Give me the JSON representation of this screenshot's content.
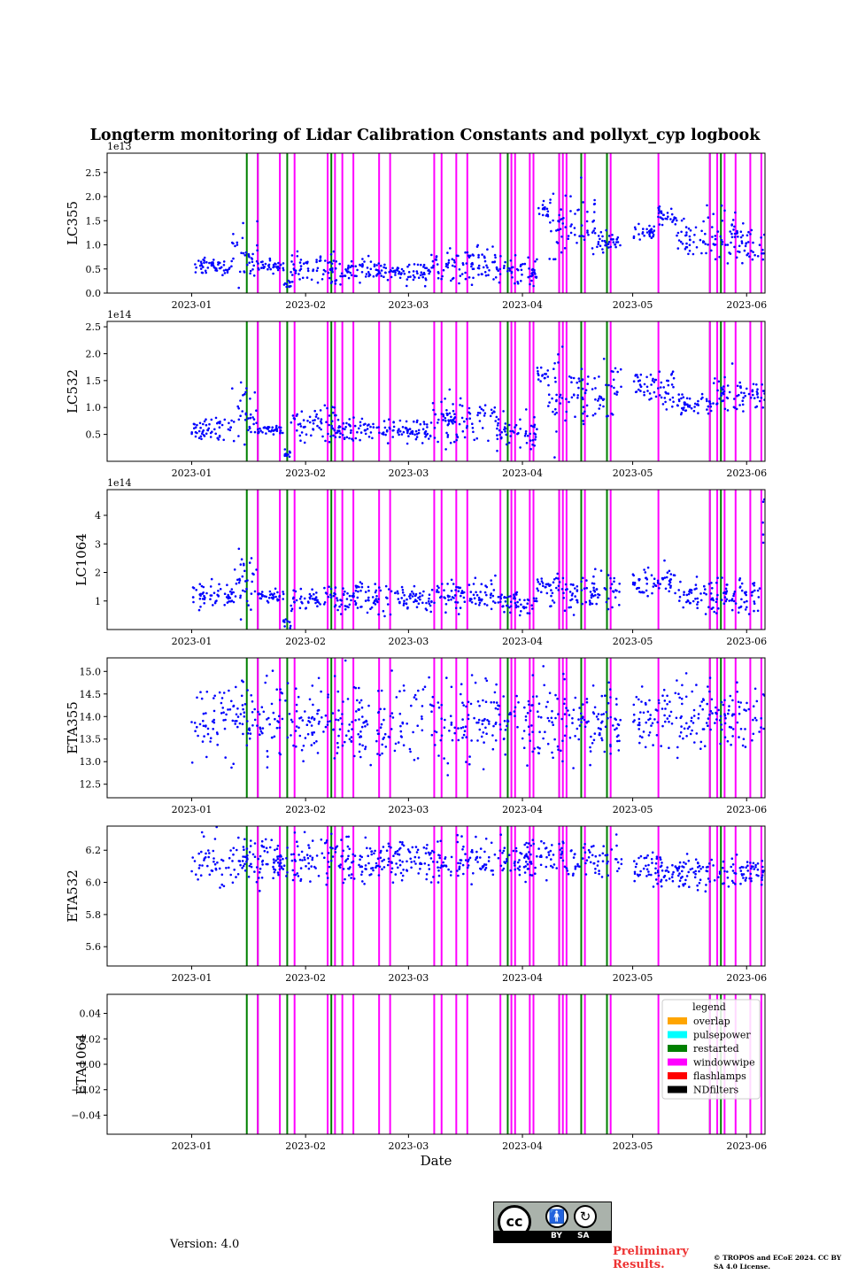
{
  "figure": {
    "title": "Longterm monitoring of Lidar Calibration Constants and pollyxt_cyp logbook",
    "version": "Version: 4.0",
    "preliminary": "Preliminary Results.",
    "copyright": "© TROPOS and ECoE 2024. CC BY SA 4.0 License.",
    "license_badge": {
      "by": "BY",
      "sa": "SA",
      "logo": "cc"
    }
  },
  "colors": {
    "points": "#0000ff",
    "overlap": "#ffa500",
    "pulsepower": "#00ffff",
    "restarted": "#008000",
    "windowwipe": "#ff00ff",
    "flashlamps": "#ff0000",
    "NDfilters": "#000000"
  },
  "chart_data": [
    {
      "type": "scatter",
      "ylabel": "LC355",
      "multiplier": "1e13",
      "xlabel": "",
      "xlim": [
        "2022-12-09",
        "2023-06-06"
      ],
      "ylim": [
        0,
        2.9
      ],
      "yticks": [
        "0.0",
        "0.5",
        "1.0",
        "1.5",
        "2.0",
        "2.5"
      ],
      "xticks": [
        "2023-01",
        "2023-02",
        "2023-03",
        "2023-04",
        "2023-05",
        "2023-06"
      ],
      "segments": [
        [
          "2023-01-01",
          "2023-01-12",
          0.55,
          0.08
        ],
        [
          "2023-01-12",
          "2023-01-19",
          0.8,
          0.3
        ],
        [
          "2023-01-19",
          "2023-01-26",
          0.55,
          0.07
        ],
        [
          "2023-01-26",
          "2023-01-28",
          0.18,
          0.05
        ],
        [
          "2023-01-28",
          "2023-02-09",
          0.55,
          0.15
        ],
        [
          "2023-02-09",
          "2023-03-07",
          0.45,
          0.12
        ],
        [
          "2023-03-07",
          "2023-03-25",
          0.6,
          0.2
        ],
        [
          "2023-03-25",
          "2023-04-05",
          0.45,
          0.15
        ],
        [
          "2023-04-05",
          "2023-04-08",
          1.7,
          0.1
        ],
        [
          "2023-04-08",
          "2023-04-14",
          1.2,
          0.35
        ],
        [
          "2023-04-14",
          "2023-04-21",
          1.4,
          0.4
        ],
        [
          "2023-04-21",
          "2023-04-28",
          1.05,
          0.1
        ],
        [
          "2023-05-01",
          "2023-05-07",
          1.3,
          0.1
        ],
        [
          "2023-05-07",
          "2023-05-13",
          1.6,
          0.1
        ],
        [
          "2023-05-13",
          "2023-05-21",
          1.1,
          0.2
        ],
        [
          "2023-05-21",
          "2023-05-29",
          1.2,
          0.25
        ],
        [
          "2023-05-29",
          "2023-06-06",
          1.0,
          0.2
        ]
      ]
    },
    {
      "type": "scatter",
      "ylabel": "LC532",
      "multiplier": "1e14",
      "xlabel": "",
      "xlim": [
        "2022-12-09",
        "2023-06-06"
      ],
      "ylim": [
        0,
        2.6
      ],
      "yticks": [
        "0.5",
        "1.0",
        "1.5",
        "2.0",
        "2.5"
      ],
      "xticks": [
        "2023-01",
        "2023-02",
        "2023-03",
        "2023-04",
        "2023-05",
        "2023-06"
      ],
      "segments": [
        [
          "2023-01-01",
          "2023-01-12",
          0.6,
          0.1
        ],
        [
          "2023-01-12",
          "2023-01-19",
          0.9,
          0.25
        ],
        [
          "2023-01-19",
          "2023-01-26",
          0.6,
          0.05
        ],
        [
          "2023-01-26",
          "2023-01-28",
          0.15,
          0.05
        ],
        [
          "2023-01-28",
          "2023-02-09",
          0.7,
          0.2
        ],
        [
          "2023-02-09",
          "2023-03-07",
          0.58,
          0.12
        ],
        [
          "2023-03-07",
          "2023-03-25",
          0.75,
          0.2
        ],
        [
          "2023-03-25",
          "2023-04-05",
          0.55,
          0.15
        ],
        [
          "2023-04-05",
          "2023-04-08",
          1.6,
          0.1
        ],
        [
          "2023-04-08",
          "2023-04-14",
          1.2,
          0.45
        ],
        [
          "2023-04-14",
          "2023-04-28",
          1.3,
          0.25
        ],
        [
          "2023-05-01",
          "2023-05-07",
          1.5,
          0.15
        ],
        [
          "2023-05-07",
          "2023-05-13",
          1.35,
          0.2
        ],
        [
          "2023-05-13",
          "2023-05-23",
          1.05,
          0.1
        ],
        [
          "2023-05-23",
          "2023-05-29",
          1.2,
          0.25
        ],
        [
          "2023-05-29",
          "2023-06-06",
          1.2,
          0.15
        ]
      ]
    },
    {
      "type": "scatter",
      "ylabel": "LC1064",
      "multiplier": "1e14",
      "xlabel": "",
      "xlim": [
        "2022-12-09",
        "2023-06-06"
      ],
      "ylim": [
        0.0,
        4.9
      ],
      "yticks": [
        "1",
        "2",
        "3",
        "4"
      ],
      "xticks": [
        "2023-01",
        "2023-02",
        "2023-03",
        "2023-04",
        "2023-05",
        "2023-06"
      ],
      "segments": [
        [
          "2023-01-01",
          "2023-01-12",
          1.2,
          0.2
        ],
        [
          "2023-01-12",
          "2023-01-19",
          1.5,
          0.6
        ],
        [
          "2023-01-19",
          "2023-01-26",
          1.15,
          0.1
        ],
        [
          "2023-01-26",
          "2023-01-28",
          0.3,
          0.1
        ],
        [
          "2023-01-28",
          "2023-03-07",
          1.1,
          0.25
        ],
        [
          "2023-03-07",
          "2023-03-25",
          1.2,
          0.3
        ],
        [
          "2023-03-25",
          "2023-04-05",
          0.95,
          0.2
        ],
        [
          "2023-04-05",
          "2023-04-08",
          1.6,
          0.2
        ],
        [
          "2023-04-08",
          "2023-04-28",
          1.3,
          0.3
        ],
        [
          "2023-05-01",
          "2023-05-13",
          1.7,
          0.25
        ],
        [
          "2023-05-13",
          "2023-05-29",
          1.2,
          0.3
        ],
        [
          "2023-05-29",
          "2023-06-05",
          1.2,
          0.4
        ],
        [
          "2023-06-05",
          "2023-06-06",
          4.0,
          0.5
        ]
      ]
    },
    {
      "type": "scatter",
      "ylabel": "ETA355",
      "xlabel": "",
      "xlim": [
        "2022-12-09",
        "2023-06-06"
      ],
      "ylim": [
        12.2,
        15.3
      ],
      "yticks": [
        "12.5",
        "13.0",
        "13.5",
        "14.0",
        "14.5",
        "15.0"
      ],
      "xticks": [
        "2023-01",
        "2023-02",
        "2023-03",
        "2023-04",
        "2023-05",
        "2023-06"
      ],
      "segments": [
        [
          "2023-01-01",
          "2023-04-28",
          13.9,
          0.45
        ],
        [
          "2023-05-01",
          "2023-06-06",
          14.0,
          0.4
        ]
      ]
    },
    {
      "type": "scatter",
      "ylabel": "ETA532",
      "xlabel": "",
      "xlim": [
        "2022-12-09",
        "2023-06-06"
      ],
      "ylim": [
        5.48,
        6.35
      ],
      "yticks": [
        "5.6",
        "5.8",
        "6.0",
        "6.2"
      ],
      "xticks": [
        "2023-01",
        "2023-02",
        "2023-03",
        "2023-04",
        "2023-05",
        "2023-06"
      ],
      "segments": [
        [
          "2023-01-01",
          "2023-04-28",
          6.14,
          0.07
        ],
        [
          "2023-05-01",
          "2023-06-06",
          6.07,
          0.05
        ]
      ]
    },
    {
      "type": "scatter",
      "ylabel": "ETA1064",
      "xlabel": "Date",
      "xlim": [
        "2022-12-09",
        "2023-06-06"
      ],
      "ylim": [
        -0.055,
        0.055
      ],
      "yticks": [
        "−0.04",
        "−0.02",
        "0.00",
        "0.02",
        "0.04"
      ],
      "xticks": [
        "2023-01",
        "2023-02",
        "2023-03",
        "2023-04",
        "2023-05",
        "2023-06"
      ],
      "segments": []
    }
  ],
  "logbook": {
    "restarted": [
      "2023-01-16",
      "2023-01-19",
      "2023-01-27",
      "2023-02-08",
      "2023-03-28",
      "2023-04-11",
      "2023-04-17",
      "2023-04-24",
      "2023-05-22",
      "2023-05-25"
    ],
    "windowwipe": [
      "2023-01-19",
      "2023-01-25",
      "2023-01-29",
      "2023-02-07",
      "2023-02-09",
      "2023-02-11",
      "2023-02-14",
      "2023-02-21",
      "2023-02-24",
      "2023-03-08",
      "2023-03-10",
      "2023-03-14",
      "2023-03-17",
      "2023-03-26",
      "2023-03-29",
      "2023-03-30",
      "2023-04-03",
      "2023-04-04",
      "2023-04-11",
      "2023-04-12",
      "2023-04-13",
      "2023-04-18",
      "2023-04-25",
      "2023-05-08",
      "2023-05-22",
      "2023-05-24",
      "2023-05-26",
      "2023-05-29",
      "2023-06-02",
      "2023-06-05"
    ]
  },
  "legend": {
    "title": "legend",
    "items": [
      {
        "label": "overlap",
        "color": "#ffa500"
      },
      {
        "label": "pulsepower",
        "color": "#00ffff"
      },
      {
        "label": "restarted",
        "color": "#008000"
      },
      {
        "label": "windowwipe",
        "color": "#ff00ff"
      },
      {
        "label": "flashlamps",
        "color": "#ff0000"
      },
      {
        "label": "NDfilters",
        "color": "#000000"
      }
    ]
  }
}
